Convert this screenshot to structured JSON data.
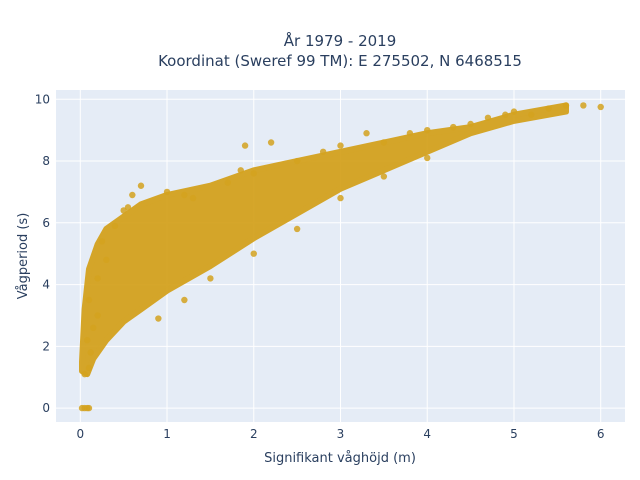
{
  "chart_data": {
    "type": "scatter",
    "title_line1": "År 1979 - 2019",
    "title_line2": "Koordinat (Sweref 99 TM): E 275502, N 6468515",
    "xlabel": "Signifikant våghöjd (m)",
    "ylabel": "Vågperiod (s)",
    "xlim": [
      -0.28,
      6.28
    ],
    "ylim": [
      -0.45,
      10.3
    ],
    "xticks": [
      0,
      1,
      2,
      3,
      4,
      5,
      6
    ],
    "yticks": [
      0,
      2,
      4,
      6,
      8,
      10
    ],
    "grid": true,
    "marker_color": "#d4a21f",
    "plot_background": "#e5ecf6",
    "series": [
      {
        "values_description_points": [
          [
            0.02,
            0.0
          ],
          [
            0.05,
            0.0
          ],
          [
            0.08,
            0.0
          ],
          [
            0.1,
            0.0
          ],
          [
            0.05,
            1.1
          ],
          [
            0.1,
            1.3
          ],
          [
            0.12,
            1.8
          ],
          [
            0.08,
            2.2
          ],
          [
            0.15,
            2.6
          ],
          [
            0.2,
            3.0
          ],
          [
            0.1,
            3.5
          ],
          [
            0.2,
            4.2
          ],
          [
            0.3,
            4.8
          ],
          [
            0.25,
            5.4
          ],
          [
            0.4,
            5.9
          ],
          [
            0.5,
            6.4
          ],
          [
            0.6,
            6.9
          ],
          [
            0.7,
            7.2
          ],
          [
            0.55,
            6.5
          ],
          [
            1.0,
            7.0
          ],
          [
            1.2,
            6.9
          ],
          [
            1.3,
            6.8
          ],
          [
            1.7,
            7.3
          ],
          [
            1.85,
            7.7
          ],
          [
            2.0,
            7.6
          ],
          [
            1.9,
            8.5
          ],
          [
            2.2,
            8.6
          ],
          [
            2.5,
            8.0
          ],
          [
            2.8,
            8.3
          ],
          [
            3.0,
            8.5
          ],
          [
            3.3,
            8.9
          ],
          [
            3.5,
            8.6
          ],
          [
            3.8,
            8.9
          ],
          [
            4.0,
            9.0
          ],
          [
            4.3,
            9.1
          ],
          [
            4.5,
            9.2
          ],
          [
            4.7,
            9.4
          ],
          [
            4.9,
            9.5
          ],
          [
            5.0,
            9.6
          ],
          [
            5.2,
            9.5
          ],
          [
            5.4,
            9.7
          ],
          [
            5.6,
            9.8
          ],
          [
            5.8,
            9.8
          ],
          [
            6.0,
            9.75
          ],
          [
            0.9,
            2.9
          ],
          [
            1.2,
            3.5
          ],
          [
            1.5,
            4.2
          ],
          [
            2.0,
            5.0
          ],
          [
            2.5,
            5.8
          ],
          [
            3.0,
            6.8
          ],
          [
            3.5,
            7.5
          ],
          [
            4.0,
            8.1
          ]
        ]
      }
    ],
    "envelope": {
      "upper": [
        [
          0.02,
          1.5
        ],
        [
          0.05,
          3.2
        ],
        [
          0.1,
          4.5
        ],
        [
          0.2,
          5.3
        ],
        [
          0.3,
          5.8
        ],
        [
          0.5,
          6.2
        ],
        [
          0.7,
          6.6
        ],
        [
          1.0,
          6.9
        ],
        [
          1.5,
          7.2
        ],
        [
          2.0,
          7.7
        ],
        [
          2.5,
          8.0
        ],
        [
          3.0,
          8.3
        ],
        [
          3.5,
          8.6
        ],
        [
          4.0,
          8.9
        ],
        [
          4.5,
          9.1
        ],
        [
          5.0,
          9.5
        ],
        [
          5.6,
          9.8
        ]
      ],
      "lower": [
        [
          5.6,
          9.6
        ],
        [
          5.0,
          9.3
        ],
        [
          4.5,
          8.9
        ],
        [
          4.0,
          8.3
        ],
        [
          3.5,
          7.7
        ],
        [
          3.0,
          7.1
        ],
        [
          2.5,
          6.3
        ],
        [
          2.0,
          5.5
        ],
        [
          1.5,
          4.6
        ],
        [
          1.0,
          3.8
        ],
        [
          0.7,
          3.2
        ],
        [
          0.5,
          2.8
        ],
        [
          0.3,
          2.2
        ],
        [
          0.15,
          1.6
        ],
        [
          0.08,
          1.1
        ],
        [
          0.02,
          1.2
        ]
      ]
    }
  }
}
